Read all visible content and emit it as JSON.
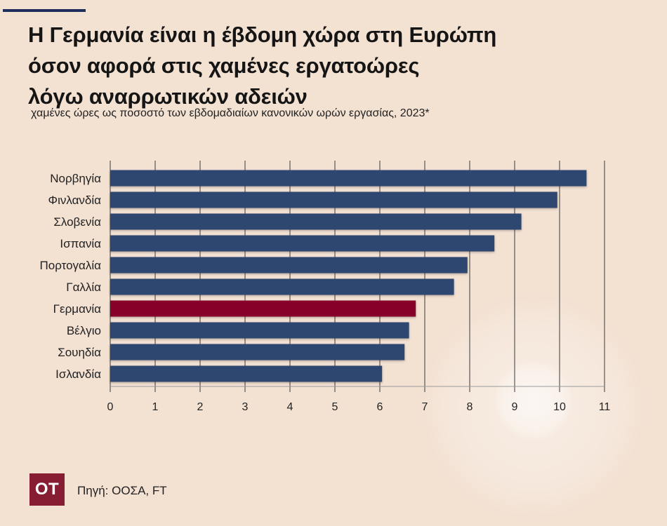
{
  "header": {
    "title_lines": [
      "Η Γερμανία είναι η έβδομη χώρα στη Ευρώπη",
      "όσον αφορά στις χαμένες εργατοώρες",
      "λόγω αναρρωτικών αδειών"
    ],
    "subtitle": "χαμένες ώρες ως ποσοστό των εβδομαδιαίων κανονικών ωρών εργασίας, 2023*"
  },
  "chart_data": {
    "type": "bar",
    "orientation": "horizontal",
    "categories": [
      "Νορβηγία",
      "Φινλανδία",
      "Σλοβενία",
      "Ισπανία",
      "Πορτογαλία",
      "Γαλλία",
      "Γερμανία",
      "Βέλγιο",
      "Σουηδία",
      "Ισλανδία"
    ],
    "values": [
      10.6,
      9.95,
      9.15,
      8.55,
      7.95,
      7.65,
      6.8,
      6.65,
      6.55,
      6.05
    ],
    "highlight": "Γερμανία",
    "xlim": [
      0,
      11
    ],
    "xticks": [
      "0",
      "1",
      "2",
      "3",
      "4",
      "5",
      "6",
      "7",
      "8",
      "9",
      "10",
      "11"
    ],
    "grid": true,
    "colors": {
      "bar": "#2e4770",
      "highlight": "#86002a",
      "grid": "#3a3a3a"
    }
  },
  "footer": {
    "logo": "ΟΤ",
    "source": "Πηγή: ΟΟΣΑ, FT"
  }
}
